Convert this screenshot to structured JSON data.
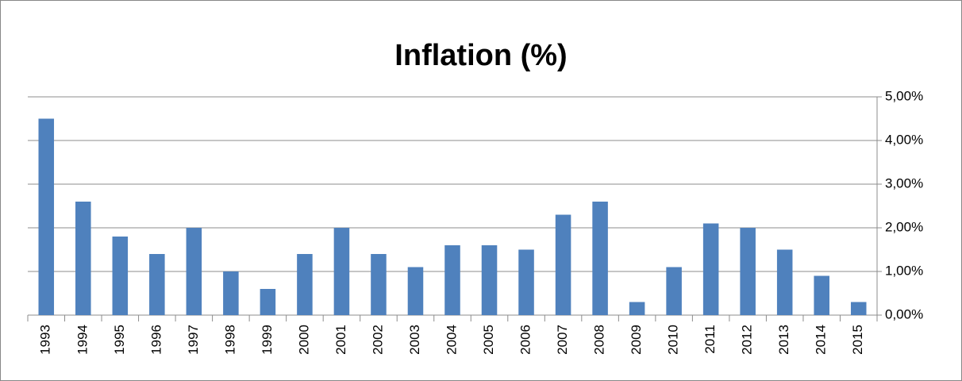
{
  "chart_data": {
    "type": "bar",
    "title": "Inflation (%)",
    "categories": [
      "1993",
      "1994",
      "1995",
      "1996",
      "1997",
      "1998",
      "1999",
      "2000",
      "2001",
      "2002",
      "2003",
      "2004",
      "2005",
      "2006",
      "2007",
      "2008",
      "2009",
      "2010",
      "2011",
      "2012",
      "2013",
      "2014",
      "2015"
    ],
    "values": [
      4.5,
      2.6,
      1.8,
      1.4,
      2.0,
      1.0,
      0.6,
      1.4,
      2.0,
      1.4,
      1.1,
      1.6,
      1.6,
      1.5,
      2.3,
      2.6,
      0.3,
      1.1,
      2.1,
      2.0,
      1.5,
      0.9,
      0.3
    ],
    "color": "#4f81bd",
    "ylim": [
      0,
      5
    ],
    "yticks": [
      {
        "value": 0,
        "label": "0,00%"
      },
      {
        "value": 1,
        "label": "1,00%"
      },
      {
        "value": 2,
        "label": "2,00%"
      },
      {
        "value": 3,
        "label": "3,00%"
      },
      {
        "value": 4,
        "label": "4,00%"
      },
      {
        "value": 5,
        "label": "5,00%"
      }
    ],
    "grid": true,
    "y_axis_side": "right"
  }
}
